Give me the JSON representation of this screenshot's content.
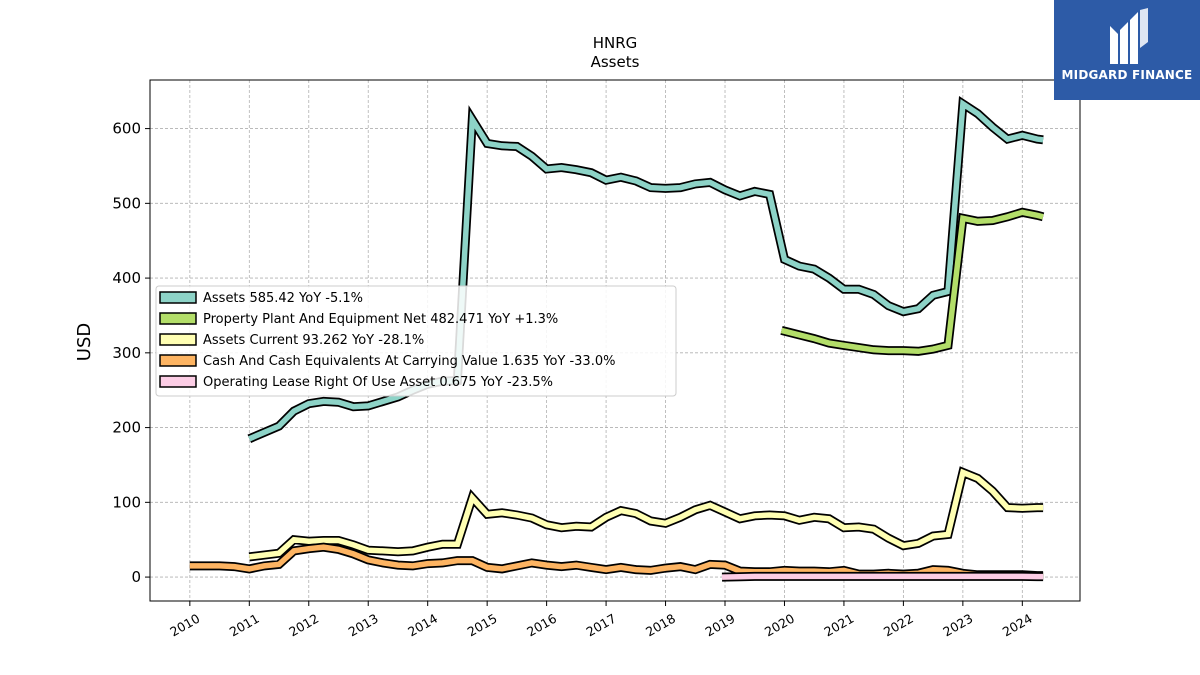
{
  "chart_data": {
    "type": "line",
    "title": "HNRG",
    "subtitle": "Assets",
    "ylabel": "USD",
    "xlabel": "",
    "ylim": [
      -32,
      665
    ],
    "xlim": [
      2009.33,
      2024.97
    ],
    "yticks": [
      0,
      100,
      200,
      300,
      400,
      500,
      600
    ],
    "xticks": [
      "2010",
      "2011",
      "2012",
      "2013",
      "2014",
      "2015",
      "2016",
      "2017",
      "2018",
      "2019",
      "2020",
      "2021",
      "2022",
      "2023",
      "2024"
    ],
    "grid": true,
    "legend_position": "center-left",
    "series": [
      {
        "name": "Assets",
        "legend": "Assets  585.42 YoY -5.1%",
        "color": "#8dd3c7",
        "x": [
          2011.0,
          2011.5,
          2011.75,
          2012.0,
          2012.25,
          2012.5,
          2012.75,
          2013.0,
          2013.25,
          2013.5,
          2013.75,
          2014.0,
          2014.25,
          2014.5,
          2014.75,
          2015.0,
          2015.25,
          2015.5,
          2015.75,
          2016.0,
          2016.25,
          2016.5,
          2016.75,
          2017.0,
          2017.25,
          2017.5,
          2017.75,
          2018.0,
          2018.25,
          2018.5,
          2018.75,
          2019.0,
          2019.25,
          2019.5,
          2019.75,
          2020.0,
          2020.25,
          2020.5,
          2020.75,
          2021.0,
          2021.25,
          2021.5,
          2021.75,
          2022.0,
          2022.25,
          2022.5,
          2022.75,
          2023.0,
          2023.25,
          2023.5,
          2023.75,
          2024.0,
          2024.25,
          2024.35
        ],
        "y": [
          185,
          202,
          222,
          232,
          235,
          234,
          228,
          229,
          235,
          241,
          250,
          258,
          262,
          263,
          612,
          580,
          577,
          576,
          563,
          546,
          548,
          545,
          541,
          531,
          535,
          530,
          521,
          520,
          521,
          526,
          528,
          518,
          510,
          516,
          512,
          425,
          416,
          412,
          400,
          385,
          385,
          378,
          363,
          355,
          359,
          377,
          382,
          633,
          620,
          602,
          586,
          591,
          586,
          585
        ]
      },
      {
        "name": "Property Plant And Equipment Net",
        "legend": "Property Plant And Equipment Net  482.471 YoY +1.3%",
        "color": "#b3de69",
        "x": [
          2019.95,
          2020.25,
          2020.5,
          2020.75,
          2021.0,
          2021.25,
          2021.5,
          2021.75,
          2022.0,
          2022.25,
          2022.5,
          2022.75,
          2023.0,
          2023.25,
          2023.5,
          2023.75,
          2024.0,
          2024.25,
          2024.35
        ],
        "y": [
          330,
          324,
          319,
          313,
          310,
          307,
          304,
          303,
          303,
          302,
          305,
          310,
          480,
          476,
          477,
          482,
          488,
          484,
          482
        ]
      },
      {
        "name": "Assets Current",
        "legend": "Assets Current  93.262 YoY -28.1%",
        "color": "#ffffb3",
        "x": [
          2011.0,
          2011.5,
          2011.75,
          2012.0,
          2012.25,
          2012.5,
          2012.75,
          2013.0,
          2013.25,
          2013.5,
          2013.75,
          2014.0,
          2014.25,
          2014.5,
          2014.75,
          2015.0,
          2015.25,
          2015.5,
          2015.75,
          2016.0,
          2016.25,
          2016.5,
          2016.75,
          2017.0,
          2017.25,
          2017.5,
          2017.75,
          2018.0,
          2018.25,
          2018.5,
          2018.75,
          2019.0,
          2019.25,
          2019.5,
          2019.75,
          2020.0,
          2020.25,
          2020.5,
          2020.75,
          2021.0,
          2021.25,
          2021.5,
          2021.75,
          2022.0,
          2022.25,
          2022.5,
          2022.75,
          2023.0,
          2023.25,
          2023.5,
          2023.75,
          2024.0,
          2024.25,
          2024.35
        ],
        "y": [
          27,
          32,
          50,
          48,
          49,
          49,
          43,
          36,
          35,
          34,
          35,
          40,
          44,
          44,
          106,
          84,
          86,
          83,
          79,
          70,
          66,
          68,
          67,
          80,
          89,
          85,
          75,
          72,
          80,
          90,
          96,
          87,
          78,
          82,
          83,
          82,
          76,
          80,
          78,
          66,
          67,
          64,
          52,
          42,
          45,
          55,
          57,
          140,
          132,
          115,
          93,
          92,
          93,
          93
        ]
      },
      {
        "name": "Cash And Cash Equivalents At Carrying Value",
        "legend": "Cash And Cash Equivalents At Carrying Value  1.635 YoY -33.0%",
        "color": "#fdb462",
        "x": [
          2010.0,
          2010.5,
          2010.75,
          2011.0,
          2011.25,
          2011.5,
          2011.75,
          2012.0,
          2012.25,
          2012.5,
          2012.75,
          2013.0,
          2013.25,
          2013.5,
          2013.75,
          2014.0,
          2014.25,
          2014.5,
          2014.75,
          2015.0,
          2015.25,
          2015.5,
          2015.75,
          2016.0,
          2016.25,
          2016.5,
          2016.75,
          2017.0,
          2017.25,
          2017.5,
          2017.75,
          2018.0,
          2018.25,
          2018.5,
          2018.75,
          2019.0,
          2019.25,
          2019.5,
          2019.75,
          2020.0,
          2020.25,
          2020.5,
          2020.75,
          2021.0,
          2021.25,
          2021.5,
          2021.75,
          2022.0,
          2022.25,
          2022.5,
          2022.75,
          2023.0,
          2023.25,
          2023.5,
          2023.75,
          2024.0,
          2024.25,
          2024.35
        ],
        "y": [
          15,
          15,
          14,
          11,
          15,
          17,
          35,
          38,
          40,
          37,
          31,
          23,
          19,
          16,
          15,
          18,
          19,
          22,
          22,
          13,
          11,
          15,
          19,
          16,
          14,
          16,
          13,
          10,
          13,
          10,
          9,
          12,
          14,
          10,
          17,
          16,
          8,
          7,
          7,
          9,
          8,
          8,
          7,
          9,
          4,
          4,
          5,
          4,
          5,
          10,
          9,
          5,
          3,
          3,
          3,
          3,
          2,
          2
        ]
      },
      {
        "name": "Operating Lease Right Of Use Asset",
        "legend": "Operating Lease Right Of Use Asset  0.675 YoY -23.5%",
        "color": "#fccde5",
        "x": [
          2018.95,
          2019.25,
          2019.5,
          2019.75,
          2020.0,
          2020.25,
          2020.5,
          2020.75,
          2021.0,
          2021.25,
          2021.5,
          2021.75,
          2022.0,
          2022.25,
          2022.5,
          2022.75,
          2023.0,
          2023.25,
          2023.5,
          2023.75,
          2024.0,
          2024.25,
          2024.35
        ],
        "y": [
          0,
          0.5,
          0.9,
          0.9,
          0.9,
          0.9,
          0.9,
          0.9,
          0.9,
          0.9,
          0.9,
          0.9,
          0.9,
          0.9,
          0.9,
          0.9,
          0.9,
          0.9,
          0.9,
          0.9,
          0.9,
          0.7,
          0.675
        ]
      }
    ]
  },
  "logo": {
    "text": "MIDGARD FINANCE",
    "background": "#2d5ba7"
  }
}
